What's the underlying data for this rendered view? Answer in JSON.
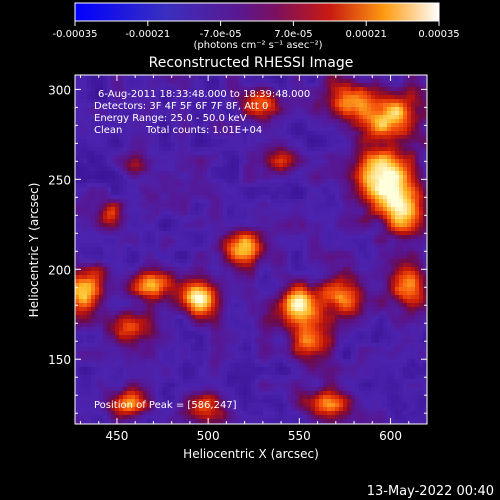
{
  "chart_data": {
    "type": "heatmap",
    "title": "Reconstructed RHESSI Image",
    "xlabel": "Heliocentric X (arcsec)",
    "ylabel": "Heliocentric Y (arcsec)",
    "xlim": [
      427,
      620
    ],
    "ylim": [
      114,
      308
    ],
    "xticks": [
      450,
      500,
      550,
      600
    ],
    "yticks": [
      150,
      200,
      250,
      300
    ],
    "colorbar": {
      "colormap": "rhessi-purple-red-yellow-white",
      "range": [
        -0.00035,
        0.00035
      ],
      "ticks": [
        "-0.00035",
        "-0.00021",
        "-7.0e-05",
        "7.0e-05",
        "0.00021",
        "0.00035"
      ],
      "units_label": "(photons cm⁻² s⁻¹ asec⁻²)"
    },
    "annotations": {
      "line1": "6-Aug-2011 18:33:48.000 to 18:39:48.000",
      "line2": "Detectors: 3F 4F 5F 6F 7F 8F, Att 0",
      "line3": "Energy Range: 25.0 - 50.0 keV",
      "line4_method": "Clean",
      "line4_counts": "Total counts: 1.01E+04",
      "peak": "Position of Peak = [586,247]"
    },
    "peak_position": [
      586,
      247
    ],
    "emission_sources": [
      {
        "x": 596,
        "y": 250,
        "amp": 1.0,
        "sx": 10,
        "sy": 12
      },
      {
        "x": 608,
        "y": 230,
        "amp": 0.7,
        "sx": 8,
        "sy": 10
      },
      {
        "x": 600,
        "y": 285,
        "amp": 0.75,
        "sx": 12,
        "sy": 10
      },
      {
        "x": 575,
        "y": 295,
        "amp": 0.6,
        "sx": 8,
        "sy": 8
      },
      {
        "x": 432,
        "y": 188,
        "amp": 0.85,
        "sx": 7,
        "sy": 10
      },
      {
        "x": 456,
        "y": 168,
        "amp": 0.55,
        "sx": 8,
        "sy": 7
      },
      {
        "x": 470,
        "y": 192,
        "amp": 0.7,
        "sx": 9,
        "sy": 6
      },
      {
        "x": 495,
        "y": 184,
        "amp": 0.8,
        "sx": 8,
        "sy": 7
      },
      {
        "x": 520,
        "y": 212,
        "amp": 0.75,
        "sx": 9,
        "sy": 7
      },
      {
        "x": 550,
        "y": 180,
        "amp": 0.8,
        "sx": 10,
        "sy": 8
      },
      {
        "x": 555,
        "y": 160,
        "amp": 0.65,
        "sx": 8,
        "sy": 7
      },
      {
        "x": 575,
        "y": 185,
        "amp": 0.6,
        "sx": 8,
        "sy": 8
      },
      {
        "x": 610,
        "y": 190,
        "amp": 0.7,
        "sx": 8,
        "sy": 9
      },
      {
        "x": 540,
        "y": 260,
        "amp": 0.5,
        "sx": 6,
        "sy": 6
      },
      {
        "x": 530,
        "y": 292,
        "amp": 0.55,
        "sx": 8,
        "sy": 6
      },
      {
        "x": 455,
        "y": 125,
        "amp": 0.65,
        "sx": 8,
        "sy": 6
      },
      {
        "x": 500,
        "y": 125,
        "amp": 0.55,
        "sx": 8,
        "sy": 6
      },
      {
        "x": 565,
        "y": 125,
        "amp": 0.6,
        "sx": 9,
        "sy": 6
      },
      {
        "x": 445,
        "y": 232,
        "amp": 0.45,
        "sx": 5,
        "sy": 5
      },
      {
        "x": 460,
        "y": 258,
        "amp": 0.4,
        "sx": 5,
        "sy": 5
      }
    ]
  },
  "footer": {
    "timestamp": "13-May-2022 00:40"
  },
  "colors": {
    "background": "#000000",
    "foreground": "#ffffff"
  }
}
